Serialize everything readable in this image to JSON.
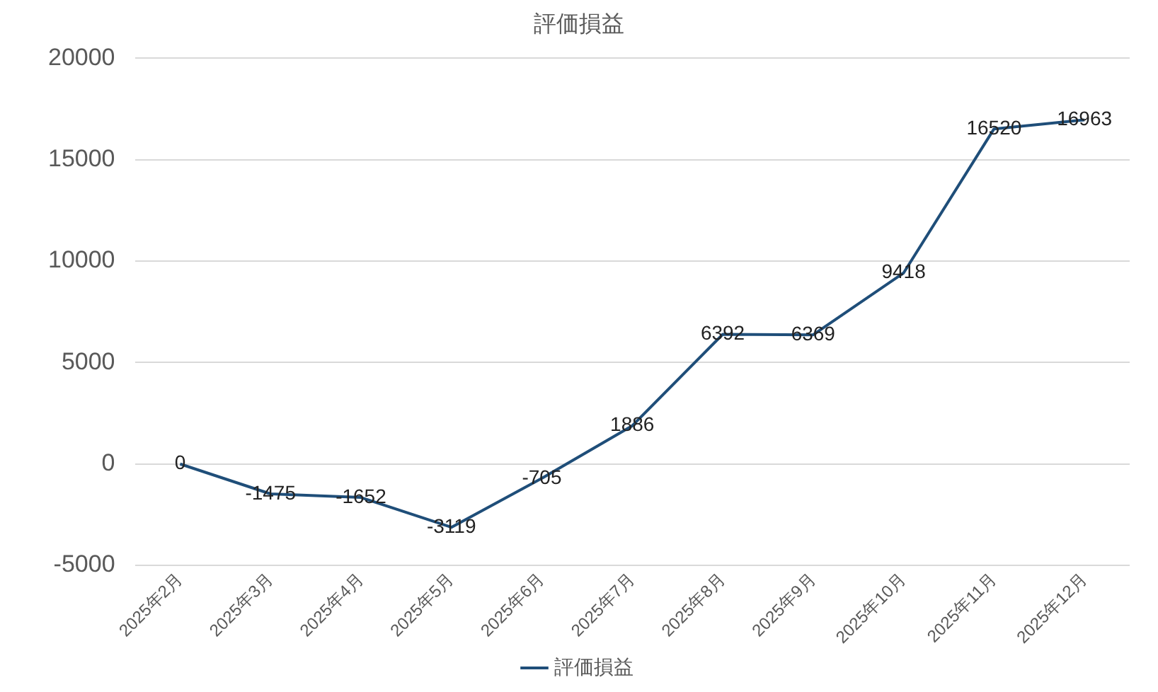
{
  "chart_data": {
    "type": "line",
    "title": "評価損益",
    "categories": [
      "2025年2月",
      "2025年3月",
      "2025年4月",
      "2025年5月",
      "2025年6月",
      "2025年7月",
      "2025年8月",
      "2025年9月",
      "2025年10月",
      "2025年11月",
      "2025年12月"
    ],
    "series": [
      {
        "name": "評価損益",
        "color": "#1f4e79",
        "values": [
          0,
          -1475,
          -1652,
          -3119,
          -705,
          1886,
          6392,
          6369,
          9418,
          16520,
          16963
        ]
      }
    ],
    "ylim": [
      -5000,
      20000
    ],
    "yticks": [
      -5000,
      0,
      5000,
      10000,
      15000,
      20000
    ],
    "grid": "y",
    "legend": "bottom",
    "marker": "none",
    "line_style": "solid",
    "data_labels": true
  }
}
